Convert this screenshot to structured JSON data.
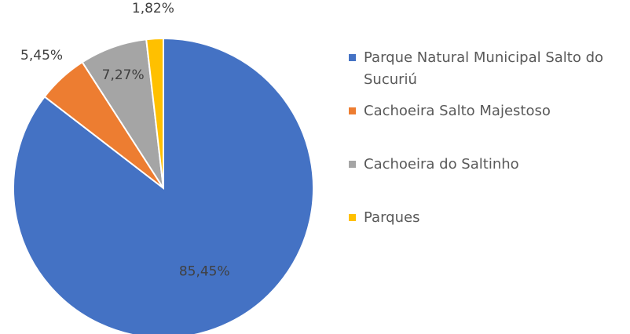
{
  "chart_data": {
    "type": "pie",
    "categories": [
      "Parque Natural Municipal Salto do Sucuriú",
      "Cachoeira Salto Majestoso",
      "Cachoeira do Saltinho",
      "Parques"
    ],
    "values": [
      85.45,
      5.45,
      7.27,
      1.82
    ],
    "value_labels": [
      "85,45%",
      "5,45%",
      "7,27%",
      "1,82%"
    ],
    "colors": [
      "#4472c4",
      "#ed7d31",
      "#a5a5a5",
      "#ffc000"
    ],
    "legend": "right"
  }
}
